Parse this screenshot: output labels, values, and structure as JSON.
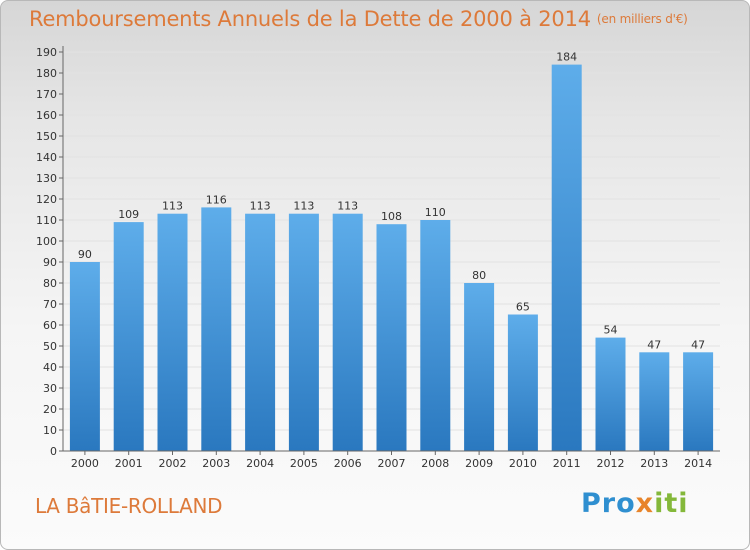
{
  "header": {
    "title": "Remboursements Annuels de la Dette de 2000 à 2014",
    "subtitle": "(en milliers d'€)"
  },
  "footer": {
    "commune": "LA BâTIE-ROLLAND",
    "logo_text": "Proxiti"
  },
  "colors": {
    "bar_top": "#5eadea",
    "bar_bottom": "#2a78bf",
    "title": "#dd7a3a",
    "grid": "#e2e2e2",
    "axis": "#666666"
  },
  "chart_data": {
    "type": "bar",
    "title": "Remboursements Annuels de la Dette de 2000 à 2014",
    "xlabel": "",
    "ylabel": "",
    "categories": [
      "2000",
      "2001",
      "2002",
      "2003",
      "2004",
      "2005",
      "2006",
      "2007",
      "2008",
      "2009",
      "2010",
      "2011",
      "2012",
      "2013",
      "2014"
    ],
    "values": [
      90,
      109,
      113,
      116,
      113,
      113,
      113,
      108,
      110,
      80,
      65,
      184,
      54,
      47,
      47
    ],
    "ylim": [
      0,
      190
    ],
    "ytick_step": 10,
    "grid": true,
    "legend": "none"
  }
}
